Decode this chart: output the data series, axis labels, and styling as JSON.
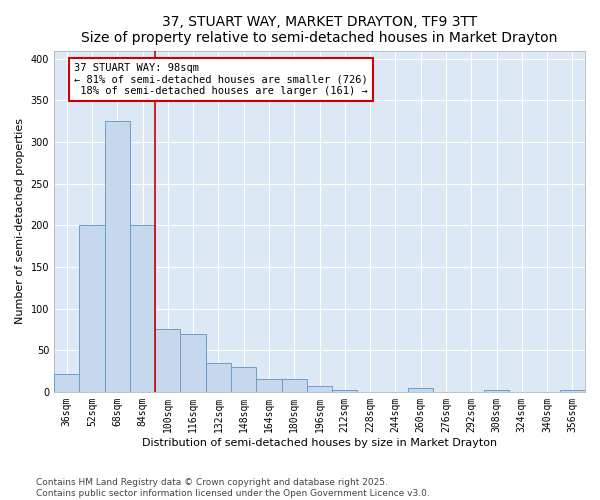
{
  "title": "37, STUART WAY, MARKET DRAYTON, TF9 3TT",
  "subtitle": "Size of property relative to semi-detached houses in Market Drayton",
  "xlabel": "Distribution of semi-detached houses by size in Market Drayton",
  "ylabel": "Number of semi-detached properties",
  "categories": [
    "36sqm",
    "52sqm",
    "68sqm",
    "84sqm",
    "100sqm",
    "116sqm",
    "132sqm",
    "148sqm",
    "164sqm",
    "180sqm",
    "196sqm",
    "212sqm",
    "228sqm",
    "244sqm",
    "260sqm",
    "276sqm",
    "292sqm",
    "308sqm",
    "324sqm",
    "340sqm",
    "356sqm"
  ],
  "values": [
    22,
    200,
    325,
    200,
    75,
    70,
    35,
    30,
    15,
    15,
    7,
    2,
    0,
    0,
    5,
    0,
    0,
    2,
    0,
    0,
    2
  ],
  "bar_color": "#c5d8ee",
  "bar_edge_color": "#6b9fc8",
  "pct_smaller": 81,
  "pct_larger": 18,
  "n_smaller": 726,
  "n_larger": 161,
  "vline_color": "#cc0000",
  "vline_x_index": 3.5,
  "annotation_box_color": "#cc0000",
  "ylim": [
    0,
    410
  ],
  "yticks": [
    0,
    50,
    100,
    150,
    200,
    250,
    300,
    350,
    400
  ],
  "footnote": "Contains HM Land Registry data © Crown copyright and database right 2025.\nContains public sector information licensed under the Open Government Licence v3.0.",
  "bg_color": "#dce8f5",
  "title_fontsize": 10,
  "axis_label_fontsize": 8,
  "tick_fontsize": 7,
  "footnote_fontsize": 6.5,
  "annotation_fontsize": 7.5
}
